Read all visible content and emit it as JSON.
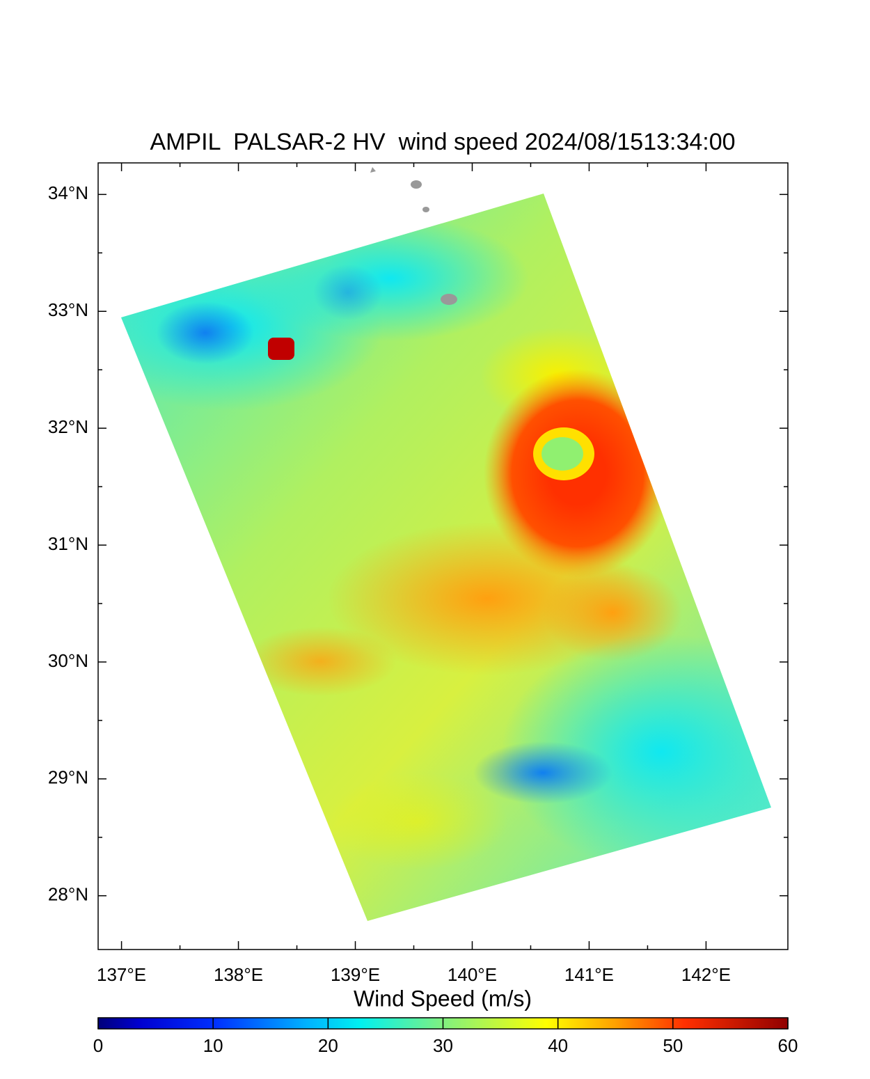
{
  "chart_data": {
    "type": "map",
    "title": "AMPIL  PALSAR-2 HV  wind speed 2024/08/1513:34:00",
    "xlim": [
      136.8,
      142.7
    ],
    "ylim": [
      27.54,
      34.27
    ],
    "xticks": [
      {
        "value": 137,
        "label": "137°E"
      },
      {
        "value": 138,
        "label": "138°E"
      },
      {
        "value": 139,
        "label": "139°E"
      },
      {
        "value": 140,
        "label": "140°E"
      },
      {
        "value": 141,
        "label": "141°E"
      },
      {
        "value": 142,
        "label": "142°E"
      }
    ],
    "yticks": [
      {
        "value": 28,
        "label": "28°N"
      },
      {
        "value": 29,
        "label": "29°N"
      },
      {
        "value": 30,
        "label": "30°N"
      },
      {
        "value": 31,
        "label": "31°N"
      },
      {
        "value": 32,
        "label": "32°N"
      },
      {
        "value": 33,
        "label": "33°N"
      },
      {
        "value": 34,
        "label": "34°N"
      }
    ],
    "colorbar": {
      "label": "Wind Speed (m/s)",
      "lim": [
        0,
        60
      ],
      "ticks": [
        0,
        10,
        20,
        30,
        40,
        50,
        60
      ]
    }
  }
}
